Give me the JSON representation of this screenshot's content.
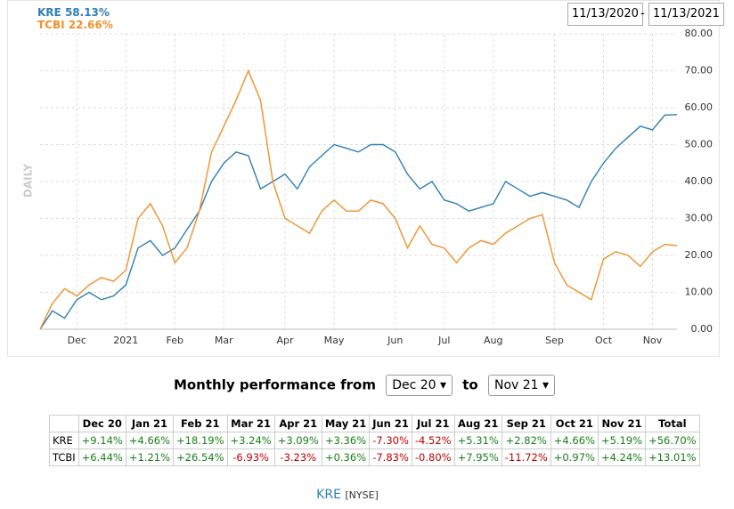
{
  "chart_data": {
    "type": "line",
    "y_axis_label": "DAILY",
    "date_from": "11/13/2020",
    "date_separator": "-",
    "date_to": "11/13/2021",
    "categories": [
      null,
      null,
      null,
      "Dec",
      null,
      null,
      null,
      "2021",
      null,
      null,
      null,
      "Feb",
      null,
      null,
      null,
      "Mar",
      null,
      null,
      null,
      null,
      "Apr",
      null,
      null,
      null,
      "May",
      null,
      null,
      null,
      null,
      "Jun",
      null,
      null,
      null,
      "Jul",
      null,
      null,
      null,
      "Aug",
      null,
      null,
      null,
      null,
      "Sep",
      null,
      null,
      null,
      "Oct",
      null,
      null,
      null,
      "Nov",
      null,
      null
    ],
    "series": [
      {
        "name": "KRE",
        "change": "58.13%",
        "color": "#2f7fb3",
        "values": [
          0,
          5,
          3,
          8,
          10,
          8,
          9,
          12,
          22,
          24,
          20,
          22,
          27,
          32,
          40,
          45,
          48,
          47,
          38,
          40,
          42,
          38,
          44,
          47,
          50,
          49,
          48,
          50,
          50,
          48,
          42,
          38,
          40,
          35,
          34,
          32,
          33,
          34,
          40,
          38,
          36,
          37,
          36,
          35,
          33,
          40,
          45,
          49,
          52,
          55,
          54,
          58,
          58.13
        ]
      },
      {
        "name": "TCBI",
        "change": "22.66%",
        "color": "#f0912a",
        "values": [
          0,
          7,
          11,
          9,
          12,
          14,
          13,
          16,
          30,
          34,
          28,
          18,
          22,
          32,
          48,
          55,
          62,
          70,
          62,
          40,
          30,
          28,
          26,
          32,
          35,
          32,
          32,
          35,
          34,
          30,
          22,
          28,
          23,
          22,
          18,
          22,
          24,
          23,
          26,
          28,
          30,
          31,
          18,
          12,
          10,
          8,
          19,
          21,
          20,
          17,
          21,
          23,
          22.66
        ]
      }
    ],
    "ylim": [
      0,
      80
    ],
    "yticks": [
      {
        "value": 0,
        "label": "0.00"
      },
      {
        "value": 10,
        "label": "10.00"
      },
      {
        "value": 20,
        "label": "20.00"
      },
      {
        "value": 30,
        "label": "30.00"
      },
      {
        "value": 40,
        "label": "40.00"
      },
      {
        "value": 50,
        "label": "50.00"
      },
      {
        "value": 60,
        "label": "60.00"
      },
      {
        "value": 70,
        "label": "70.00"
      },
      {
        "value": 80,
        "label": "80.00"
      }
    ],
    "grid": true
  },
  "controls": {
    "label_from": "Monthly performance from",
    "from": "Dec 20",
    "label_to": "to",
    "to": "Nov 21"
  },
  "table": {
    "header": [
      "Dec 20",
      "Jan 21",
      "Feb 21",
      "Mar 21",
      "Apr 21",
      "May 21",
      "Jun 21",
      "Jul 21",
      "Aug 21",
      "Sep 21",
      "Oct 21",
      "Nov 21",
      "Total"
    ],
    "rows": [
      [
        "KRE",
        "+9.14%",
        "+4.66%",
        "+18.19%",
        "+3.24%",
        "+3.09%",
        "+3.36%",
        "-7.30%",
        "-4.52%",
        "+5.31%",
        "+2.82%",
        "+4.66%",
        "+5.19%",
        "+56.70%"
      ],
      [
        "TCBI",
        "+6.44%",
        "+1.21%",
        "+26.54%",
        "-6.93%",
        "-3.23%",
        "+0.36%",
        "-7.83%",
        "-0.80%",
        "+7.95%",
        "-11.72%",
        "+0.97%",
        "+4.24%",
        "+13.01%"
      ]
    ]
  },
  "footer": {
    "symbol": "KRE",
    "exchange": "[NYSE]"
  }
}
